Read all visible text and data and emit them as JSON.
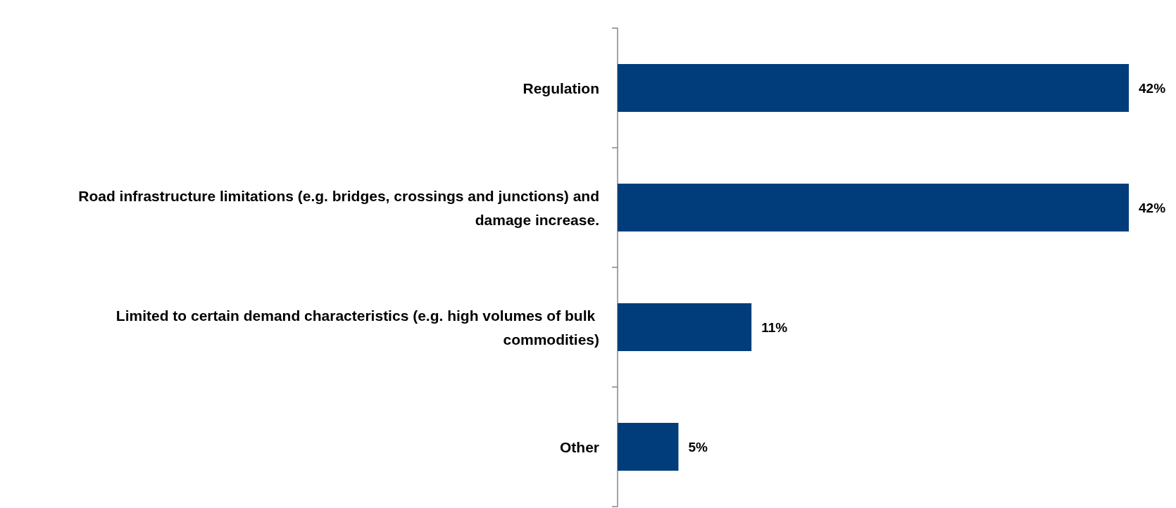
{
  "chart_data": {
    "type": "bar",
    "orientation": "horizontal",
    "categories": [
      "Regulation",
      "Road infrastructure limitations (e.g. bridges, crossings and junctions) and damage increase.",
      "Limited to certain demand characteristics (e.g. high volumes of bulk commodities)",
      "Other"
    ],
    "values": [
      42,
      42,
      11,
      5
    ],
    "value_labels": [
      "42%",
      "42%",
      "11%",
      "5%"
    ],
    "color": "#003d7a",
    "tick_labels": "y"
  }
}
